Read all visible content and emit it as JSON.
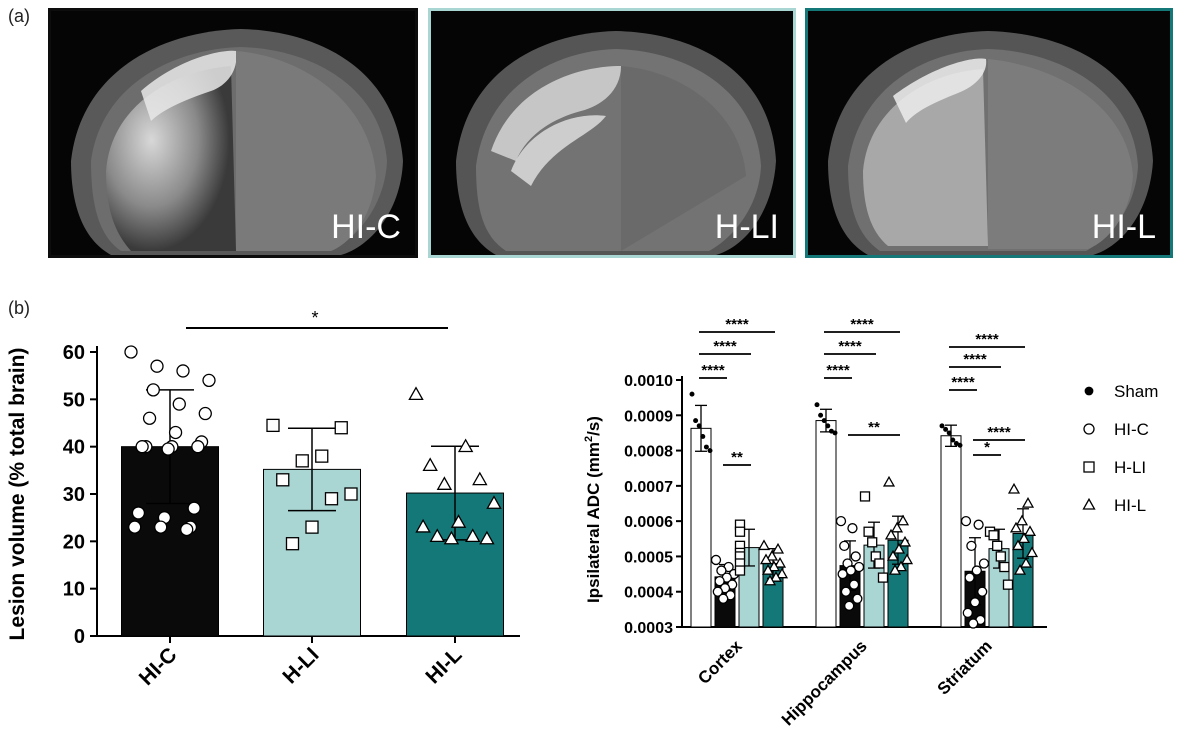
{
  "panel_labels": {
    "a": "(a)",
    "b": "(b)"
  },
  "mri_images": [
    {
      "label": "HI-C",
      "border": "#0d0d0d"
    },
    {
      "label": "H-LI",
      "border": "#a9d5d3"
    },
    {
      "label": "HI-L",
      "border": "#157878"
    }
  ],
  "colors": {
    "sham": "#ffffff",
    "HI-C": "#0a0a0a",
    "H-LI": "#a9d5d3",
    "HI-L": "#157878"
  },
  "chart_data": [
    {
      "type": "bar",
      "title": "",
      "ylabel": "Lesion volume (% total brain)",
      "xlabel": "",
      "ylim": [
        0,
        60
      ],
      "yticks": [
        0,
        10,
        20,
        30,
        40,
        50,
        60
      ],
      "categories": [
        "HI-C",
        "H-LI",
        "HI-L"
      ],
      "values": [
        40,
        35.2,
        30.2
      ],
      "sd": [
        12,
        8.7,
        9.9
      ],
      "markers": [
        "circle",
        "square",
        "triangle"
      ],
      "points": [
        [
          60,
          57,
          56,
          54,
          52,
          49,
          47,
          46,
          43,
          41,
          40,
          40,
          40,
          40,
          39.5,
          27,
          26,
          25,
          23,
          23,
          23,
          22.5
        ],
        [
          44.5,
          44,
          38,
          37,
          33,
          30,
          29,
          23,
          19.5
        ],
        [
          51,
          40,
          36,
          33,
          32,
          28,
          24,
          23,
          21,
          21,
          20.5,
          20.5
        ]
      ],
      "significance": [
        {
          "from": 0,
          "to": 2,
          "label": "*"
        }
      ]
    },
    {
      "type": "bar",
      "title": "",
      "ylabel": "Ipsilateral ADC (mm²/s)",
      "ylabel_parts": [
        "Ipsilateral ADC (mm",
        "2",
        "/s)"
      ],
      "xlabel": "",
      "ylim": [
        0.0003,
        0.001
      ],
      "yticks": [
        "0.0003",
        "0.0004",
        "0.0005",
        "0.0006",
        "0.0007",
        "0.0008",
        "0.0009",
        "0.0010"
      ],
      "categories": [
        "Cortex",
        "Hippocampus",
        "Striatum"
      ],
      "legend_position": "right",
      "series": [
        {
          "name": "Sham",
          "marker": "dot",
          "values": [
            0.000863,
            0.000885,
            0.000842
          ],
          "sd": [
            6.5e-05,
            3.2e-05,
            3e-05
          ],
          "points": [
            [
              0.00096,
              0.000885,
              0.00087,
              0.00084,
              0.00081,
              0.0008
            ],
            [
              0.00093,
              0.0009,
              0.000885,
              0.00087,
              0.000855,
              0.00085
            ],
            [
              0.00087,
              0.00086,
              0.00085,
              0.00083,
              0.00082,
              0.000815
            ]
          ]
        },
        {
          "name": "HI-C",
          "marker": "circle",
          "values": [
            0.000442,
            0.000474,
            0.000458
          ],
          "sd": [
            3.5e-05,
            7e-05,
            9.5e-05
          ],
          "points": [
            [
              0.00049,
              0.00047,
              0.00046,
              0.00045,
              0.00044,
              0.00043,
              0.00042,
              0.00041,
              0.0004,
              0.00039,
              0.00038
            ],
            [
              0.0006,
              0.00058,
              0.00053,
              0.0005,
              0.00048,
              0.00047,
              0.00046,
              0.00045,
              0.00042,
              0.0004,
              0.00038,
              0.00036
            ],
            [
              0.0006,
              0.00059,
              0.00053,
              0.00048,
              0.00046,
              0.00044,
              0.0004,
              0.00037,
              0.00034,
              0.00032,
              0.00031
            ]
          ]
        },
        {
          "name": "H-LI",
          "marker": "square",
          "values": [
            0.000525,
            0.000532,
            0.000522
          ],
          "sd": [
            5.2e-05,
            6.5e-05,
            5.5e-05
          ],
          "points": [
            [
              0.00059,
              0.00057,
              0.00053,
              0.00051,
              0.0005,
              0.00048,
              0.00046
            ],
            [
              0.00067,
              0.00057,
              0.00054,
              0.0005,
              0.00048,
              0.00044
            ],
            [
              0.00057,
              0.00056,
              0.00053,
              0.0005,
              0.00047,
              0.00042
            ]
          ]
        },
        {
          "name": "HI-L",
          "marker": "triangle",
          "values": [
            0.00048,
            0.000546,
            0.000565
          ],
          "sd": [
            4.2e-05,
            6.8e-05,
            7e-05
          ],
          "points": [
            [
              0.00053,
              0.00052,
              0.0005,
              0.00049,
              0.00048,
              0.00047,
              0.00046,
              0.00045,
              0.00044,
              0.00043
            ],
            [
              0.00071,
              0.0006,
              0.00058,
              0.00056,
              0.00054,
              0.00052,
              0.0005,
              0.00049,
              0.00047,
              0.00046
            ],
            [
              0.00069,
              0.00065,
              0.0006,
              0.00058,
              0.00057,
              0.00055,
              0.00053,
              0.00051,
              0.00048,
              0.00046
            ]
          ]
        }
      ],
      "significance": [
        {
          "group": 0,
          "from": 0,
          "to": 1,
          "label": "****",
          "tier": 1
        },
        {
          "group": 0,
          "from": 0,
          "to": 2,
          "label": "****",
          "tier": 2
        },
        {
          "group": 0,
          "from": 0,
          "to": 3,
          "label": "****",
          "tier": 3
        },
        {
          "group": 0,
          "from": 1,
          "to": 2,
          "label": "**",
          "tier": 0
        },
        {
          "group": 1,
          "from": 0,
          "to": 1,
          "label": "****",
          "tier": 1
        },
        {
          "group": 1,
          "from": 0,
          "to": 2,
          "label": "****",
          "tier": 2
        },
        {
          "group": 1,
          "from": 0,
          "to": 3,
          "label": "****",
          "tier": 3
        },
        {
          "group": 1,
          "from": 1,
          "to": 3,
          "label": "**",
          "tier": 0
        },
        {
          "group": 2,
          "from": 0,
          "to": 1,
          "label": "****",
          "tier": 1
        },
        {
          "group": 2,
          "from": 0,
          "to": 2,
          "label": "****",
          "tier": 2
        },
        {
          "group": 2,
          "from": 0,
          "to": 3,
          "label": "****",
          "tier": 3
        },
        {
          "group": 2,
          "from": 1,
          "to": 2,
          "label": "*",
          "tier": 0
        },
        {
          "group": 2,
          "from": 1,
          "to": 3,
          "label": "****",
          "tier": 0.6
        }
      ]
    }
  ]
}
